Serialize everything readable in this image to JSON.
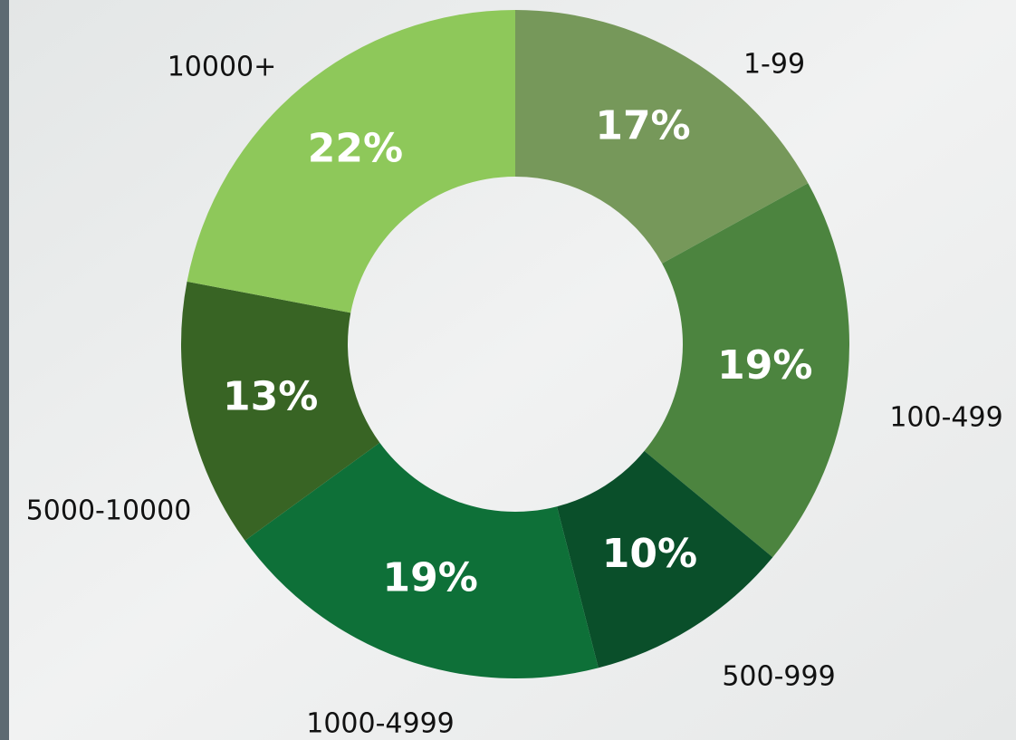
{
  "chart_data": {
    "type": "donut",
    "categories": [
      "1-99",
      "100-499",
      "500-999",
      "1000-4999",
      "5000-10000",
      "10000+"
    ],
    "values": [
      17,
      19,
      10,
      19,
      13,
      22
    ],
    "value_labels": [
      "17%",
      "19%",
      "10%",
      "19%",
      "13%",
      "22%"
    ],
    "colors": [
      "#76985a",
      "#4c843f",
      "#0a4f2a",
      "#0e7038",
      "#386424",
      "#8ec85a"
    ]
  }
}
